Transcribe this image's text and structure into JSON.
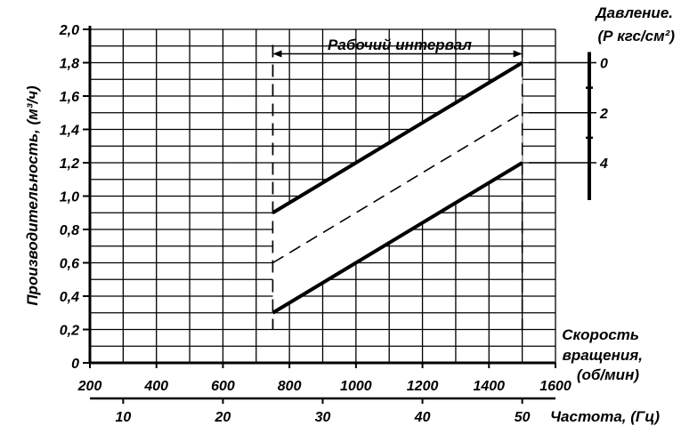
{
  "chart_data": {
    "type": "line",
    "y_axis": {
      "label": "Производительность, (м³/ч)",
      "ylim": [
        0,
        2.0
      ],
      "ticks": [
        {
          "v": 0.0,
          "t": "0"
        },
        {
          "v": 0.2,
          "t": "0,2"
        },
        {
          "v": 0.4,
          "t": "0,4"
        },
        {
          "v": 0.6,
          "t": "0,6"
        },
        {
          "v": 0.8,
          "t": "0,8"
        },
        {
          "v": 1.0,
          "t": "1,0"
        },
        {
          "v": 1.2,
          "t": "1,2"
        },
        {
          "v": 1.4,
          "t": "1,4"
        },
        {
          "v": 1.6,
          "t": "1,6"
        },
        {
          "v": 1.8,
          "t": "1,8"
        },
        {
          "v": 2.0,
          "t": "2,0"
        }
      ]
    },
    "x_axis": {
      "label_line1": "Скорость",
      "label_line2": "вращения,",
      "label_line3": "(об/мин)",
      "xlim": [
        200,
        1600
      ],
      "ticks": [
        {
          "v": 200,
          "t": "200"
        },
        {
          "v": 400,
          "t": "400"
        },
        {
          "v": 600,
          "t": "600"
        },
        {
          "v": 800,
          "t": "800"
        },
        {
          "v": 1000,
          "t": "1000"
        },
        {
          "v": 1200,
          "t": "1200"
        },
        {
          "v": 1400,
          "t": "1400"
        },
        {
          "v": 1600,
          "t": "1600"
        }
      ]
    },
    "freq_axis": {
      "label": "Частота, (Гц)",
      "ticks": [
        {
          "rpm": 300,
          "t": "10"
        },
        {
          "rpm": 600,
          "t": "20"
        },
        {
          "rpm": 900,
          "t": "30"
        },
        {
          "rpm": 1200,
          "t": "40"
        },
        {
          "rpm": 1500,
          "t": "50"
        }
      ]
    },
    "pressure_axis": {
      "label_line1": "Давление.",
      "label_line2": "(Р кгс/см²)",
      "ticks": [
        {
          "y": 1.8,
          "t": "0"
        },
        {
          "y": 1.5,
          "t": "2"
        },
        {
          "y": 1.2,
          "t": "4"
        }
      ],
      "minor_ticks": [
        1.65,
        1.35
      ]
    },
    "working_interval": {
      "label": "Рабочий интервал",
      "x_from": 750,
      "x_to": 1500
    },
    "series": [
      {
        "style": "solid",
        "x": [
          750,
          1500
        ],
        "y": [
          0.9,
          1.8
        ]
      },
      {
        "style": "dashed",
        "x": [
          750,
          1500
        ],
        "y": [
          0.6,
          1.5
        ]
      },
      {
        "style": "solid",
        "x": [
          750,
          1500
        ],
        "y": [
          0.3,
          1.2
        ]
      }
    ],
    "grid": true
  }
}
